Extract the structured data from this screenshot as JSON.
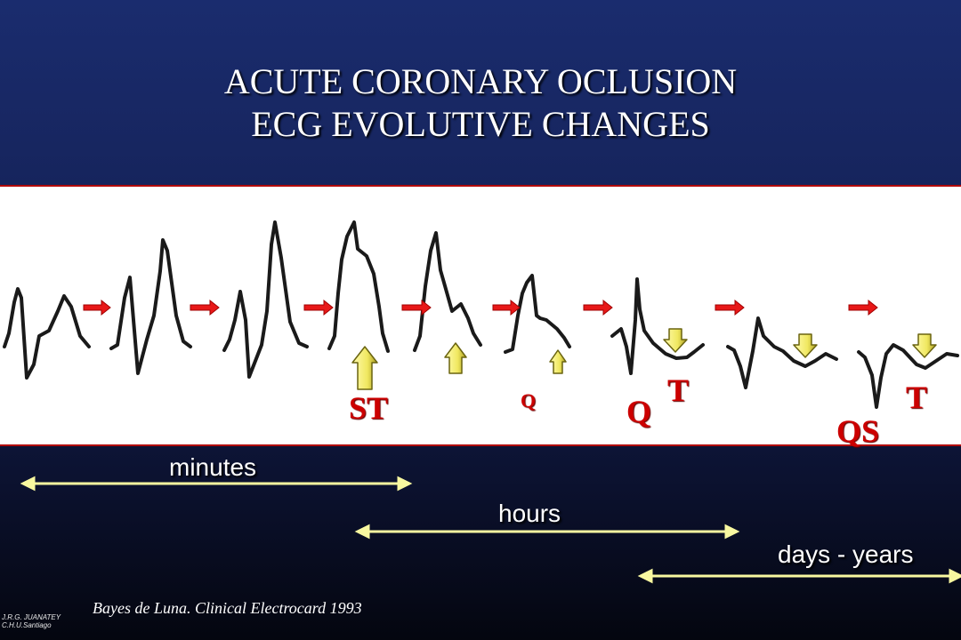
{
  "title": {
    "line1": "ACUTE CORONARY OCLUSION",
    "line2": "ECG EVOLUTIVE CHANGES"
  },
  "wave_labels": {
    "st": "ST",
    "q_small": "Q",
    "q": "Q",
    "t_first": "T",
    "qs": "QS",
    "t_last": "T"
  },
  "timeline": {
    "minutes": "minutes",
    "hours": "hours",
    "days_years": "days - years"
  },
  "citation": "Bayes de Luna. Clinical Electrocard 1993",
  "watermark": {
    "line1": "J.R.G. JUANATEY",
    "line2": "C.H.U.Santiago"
  },
  "colors": {
    "arrow_red": "#e81818",
    "up_arrow_fill": "#f4f070",
    "timeline_line": "#f8f8a0"
  }
}
